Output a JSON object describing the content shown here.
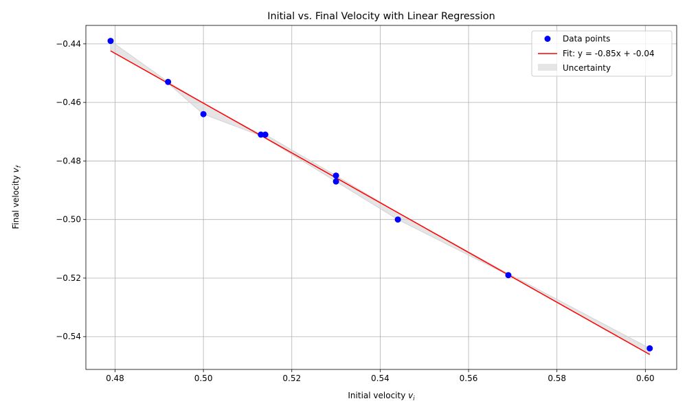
{
  "chart_data": {
    "type": "scatter",
    "title": "Initial vs. Final Velocity with Linear Regression",
    "xlabel": {
      "base": "Initial velocity ",
      "var": "v",
      "sub": "i"
    },
    "ylabel": {
      "base": "Final velocity ",
      "var": "v",
      "sub": "f"
    },
    "xlim": [
      0.4734,
      0.6071
    ],
    "ylim": [
      -0.5512,
      -0.4337
    ],
    "xticks": [
      0.48,
      0.5,
      0.52,
      0.54,
      0.56,
      0.58,
      0.6
    ],
    "xtick_labels": [
      "0.48",
      "0.50",
      "0.52",
      "0.54",
      "0.56",
      "0.58",
      "0.60"
    ],
    "yticks": [
      -0.44,
      -0.46,
      -0.48,
      -0.5,
      -0.52,
      -0.54
    ],
    "ytick_labels": [
      "−0.44",
      "−0.46",
      "−0.48",
      "−0.50",
      "−0.52",
      "−0.54"
    ],
    "grid": true,
    "legend_position": "top-right",
    "series": [
      {
        "name": "Data points",
        "kind": "scatter",
        "color": "#0000ff",
        "points": [
          {
            "x": 0.479,
            "y": -0.439
          },
          {
            "x": 0.492,
            "y": -0.453
          },
          {
            "x": 0.5,
            "y": -0.464
          },
          {
            "x": 0.513,
            "y": -0.471
          },
          {
            "x": 0.514,
            "y": -0.471
          },
          {
            "x": 0.53,
            "y": -0.485
          },
          {
            "x": 0.53,
            "y": -0.487
          },
          {
            "x": 0.544,
            "y": -0.5
          },
          {
            "x": 0.569,
            "y": -0.519
          },
          {
            "x": 0.601,
            "y": -0.544
          }
        ]
      },
      {
        "name": "Fit: y = -0.85x + -0.04",
        "kind": "line",
        "color": "#ff0000",
        "points": [
          {
            "x": 0.479,
            "y": -0.4424
          },
          {
            "x": 0.601,
            "y": -0.5461
          }
        ]
      },
      {
        "name": "Uncertainty",
        "kind": "band",
        "color": "#d3d3d3",
        "points": [
          {
            "x": 0.479,
            "lower": -0.4424,
            "upper": -0.439
          },
          {
            "x": 0.492,
            "lower": -0.4535,
            "upper": -0.453
          },
          {
            "x": 0.5,
            "lower": -0.464,
            "upper": -0.4603
          },
          {
            "x": 0.513,
            "lower": -0.4714,
            "upper": -0.471
          },
          {
            "x": 0.514,
            "lower": -0.4722,
            "upper": -0.471
          },
          {
            "x": 0.53,
            "lower": -0.487,
            "upper": -0.485
          },
          {
            "x": 0.544,
            "lower": -0.5,
            "upper": -0.4977
          },
          {
            "x": 0.569,
            "lower": -0.519,
            "upper": -0.5185
          },
          {
            "x": 0.601,
            "lower": -0.5461,
            "upper": -0.544
          }
        ]
      }
    ]
  }
}
